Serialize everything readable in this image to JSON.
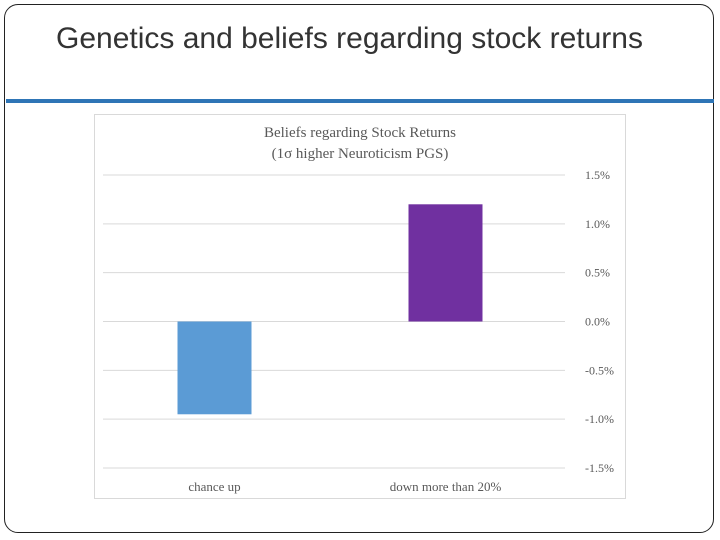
{
  "slide": {
    "title": "Genetics and beliefs regarding stock returns"
  },
  "chart_data": {
    "type": "bar",
    "title": "Beliefs regarding Stock Returns",
    "subtitle": "(1σ higher Neuroticism PGS)",
    "categories": [
      "chance up",
      "down more than 20%"
    ],
    "values": [
      -0.95,
      1.2
    ],
    "bar_colors": [
      "#5b9bd5",
      "#7030a0"
    ],
    "ylim": [
      -1.5,
      1.5
    ],
    "yticks": [
      {
        "value": 1.5,
        "label": "1.5%"
      },
      {
        "value": 1.0,
        "label": "1.0%"
      },
      {
        "value": 0.5,
        "label": "0.5%"
      },
      {
        "value": 0.0,
        "label": "0.0%"
      },
      {
        "value": -0.5,
        "label": "-0.5%"
      },
      {
        "value": -1.0,
        "label": "-1.0%"
      },
      {
        "value": -1.5,
        "label": "-1.5%"
      }
    ],
    "y_axis_side": "right",
    "grid": true,
    "xlabel": "",
    "ylabel": ""
  }
}
